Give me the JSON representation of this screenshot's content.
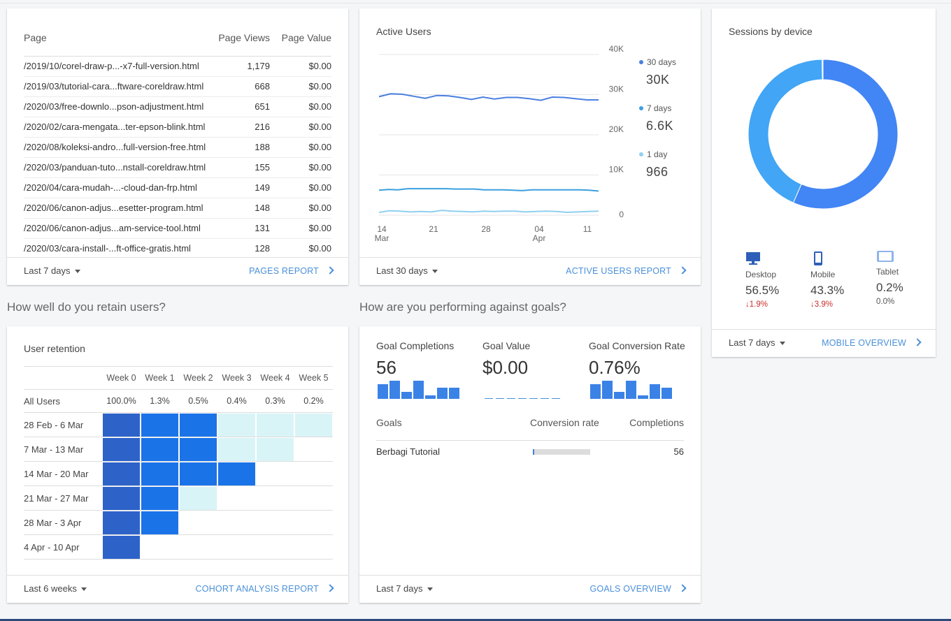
{
  "pages_card": {
    "headers": {
      "page": "Page",
      "views": "Page Views",
      "value": "Page Value"
    },
    "rows": [
      {
        "page": "/2019/10/corel-draw-p...-x7-full-version.html",
        "views": "1,179",
        "value": "$0.00"
      },
      {
        "page": "/2019/03/tutorial-cara...ftware-coreldraw.html",
        "views": "668",
        "value": "$0.00"
      },
      {
        "page": "/2020/03/free-downlo...pson-adjustment.html",
        "views": "651",
        "value": "$0.00"
      },
      {
        "page": "/2020/02/cara-mengata...ter-epson-blink.html",
        "views": "216",
        "value": "$0.00"
      },
      {
        "page": "/2020/08/koleksi-andro...full-version-free.html",
        "views": "188",
        "value": "$0.00"
      },
      {
        "page": "/2020/03/panduan-tuto...nstall-coreldraw.html",
        "views": "155",
        "value": "$0.00"
      },
      {
        "page": "/2020/04/cara-mudah-...-cloud-dan-frp.html",
        "views": "149",
        "value": "$0.00"
      },
      {
        "page": "/2020/06/canon-adjus...esetter-program.html",
        "views": "148",
        "value": "$0.00"
      },
      {
        "page": "/2020/06/canon-adjus...am-service-tool.html",
        "views": "131",
        "value": "$0.00"
      },
      {
        "page": "/2020/03/cara-install-...ft-office-gratis.html",
        "views": "128",
        "value": "$0.00"
      }
    ],
    "range": "Last 7 days",
    "link": "PAGES REPORT"
  },
  "active_users": {
    "title": "Active Users",
    "range": "Last 30 days",
    "link": "ACTIVE USERS REPORT",
    "legend": [
      {
        "label": "30 days",
        "value": "30K",
        "color": "#4a7fe0"
      },
      {
        "label": "7 days",
        "value": "6.6K",
        "color": "#3aa0e0"
      },
      {
        "label": "1 day",
        "value": "966",
        "color": "#8fd0ef"
      }
    ]
  },
  "sessions": {
    "title": "Sessions by device",
    "range": "Last 7 days",
    "link": "MOBILE OVERVIEW",
    "devices": [
      {
        "name": "Desktop",
        "pct": "56.5%",
        "change": "1.9%",
        "dir": "down"
      },
      {
        "name": "Mobile",
        "pct": "43.3%",
        "change": "3.9%",
        "dir": "down"
      },
      {
        "name": "Tablet",
        "pct": "0.2%",
        "change": "0.0%",
        "dir": "none"
      }
    ]
  },
  "retention_heading": "How well do you retain users?",
  "goals_heading": "How are you performing against goals?",
  "retention": {
    "title": "User retention",
    "weeks": [
      "Week 0",
      "Week 1",
      "Week 2",
      "Week 3",
      "Week 4",
      "Week 5"
    ],
    "all_users_label": "All Users",
    "all_users": [
      "100.0%",
      "1.3%",
      "0.5%",
      "0.4%",
      "0.3%",
      "0.2%"
    ],
    "cohorts": [
      "28 Feb - 6 Mar",
      "7 Mar - 13 Mar",
      "14 Mar - 20 Mar",
      "21 Mar - 27 Mar",
      "28 Mar - 3 Apr",
      "4 Apr - 10 Apr"
    ],
    "range": "Last 6 weeks",
    "link": "COHORT ANALYSIS REPORT"
  },
  "goals": {
    "metrics": [
      {
        "label": "Goal Completions",
        "value": "56"
      },
      {
        "label": "Goal Value",
        "value": "$0.00"
      },
      {
        "label": "Goal Conversion Rate",
        "value": "0.76%"
      }
    ],
    "table_headers": {
      "goal": "Goals",
      "rate": "Conversion rate",
      "completions": "Completions"
    },
    "rows": [
      {
        "goal": "Berbagi Tutorial",
        "completions": "56",
        "rate_fraction": 0.01
      }
    ],
    "range": "Last 7 days",
    "link": "GOALS OVERVIEW"
  },
  "chart_data": [
    {
      "type": "line",
      "title": "Active Users",
      "x_tick_labels": [
        "14 Mar",
        "21",
        "28",
        "04 Apr",
        "11"
      ],
      "y_tick_labels": [
        "40K",
        "30K",
        "20K",
        "10K",
        "0"
      ],
      "ylim": [
        0,
        40000
      ],
      "series": [
        {
          "name": "30 days",
          "values": [
            29500,
            30200,
            30100,
            29600,
            29100,
            29800,
            29700,
            29300,
            28800,
            29400,
            28900,
            29300,
            29300,
            29000,
            28600,
            29400,
            29300,
            29000,
            28700,
            28700
          ]
        },
        {
          "name": "7 days",
          "values": [
            6200,
            6400,
            6300,
            6600,
            6600,
            6600,
            6600,
            6600,
            6500,
            6500,
            6500,
            6300,
            6300,
            6300,
            6200,
            6100,
            6300,
            6300,
            6300,
            6300,
            6300,
            6300,
            6200,
            6000
          ]
        },
        {
          "name": "1 day",
          "values": [
            700,
            1100,
            1000,
            800,
            900,
            800,
            1200,
            1000,
            900,
            800,
            1000,
            900,
            1000,
            1000,
            800,
            900,
            1000,
            900,
            700,
            800,
            900,
            1000
          ]
        }
      ]
    },
    {
      "type": "pie",
      "title": "Sessions by device",
      "categories": [
        "Desktop",
        "Mobile",
        "Tablet"
      ],
      "values": [
        56.5,
        43.3,
        0.2
      ]
    },
    {
      "type": "heatmap",
      "title": "User retention",
      "rows": [
        "28 Feb - 6 Mar",
        "7 Mar - 13 Mar",
        "14 Mar - 20 Mar",
        "21 Mar - 27 Mar",
        "28 Mar - 3 Apr",
        "4 Apr - 10 Apr"
      ],
      "columns": [
        "Week 0",
        "Week 1",
        "Week 2",
        "Week 3",
        "Week 4",
        "Week 5"
      ],
      "levels": [
        [
          3,
          2,
          2,
          1,
          1,
          1
        ],
        [
          3,
          2,
          2,
          1,
          1
        ],
        [
          3,
          2,
          2,
          2
        ],
        [
          3,
          2,
          1
        ],
        [
          3,
          2
        ],
        [
          3
        ]
      ]
    },
    {
      "type": "bar",
      "title": "Goal Completions",
      "values": [
        4,
        5,
        2,
        5,
        1,
        3,
        3
      ]
    },
    {
      "type": "bar",
      "title": "Goal Value",
      "values": [
        0,
        0,
        0,
        0,
        0,
        0,
        0
      ]
    },
    {
      "type": "bar",
      "title": "Goal Conversion Rate",
      "values": [
        4,
        5,
        2,
        5,
        1,
        4,
        3
      ]
    }
  ]
}
